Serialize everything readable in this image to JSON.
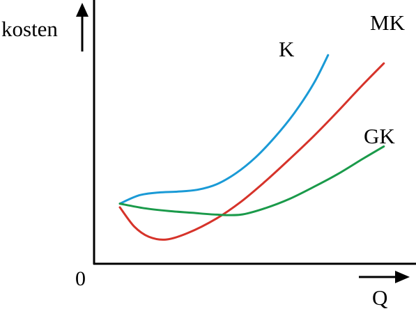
{
  "chart_data": {
    "type": "line",
    "title": "",
    "ylabel": "kosten",
    "xlabel": "Q",
    "origin_label": "0",
    "grid": false,
    "legend": "none",
    "series": [
      {
        "name": "K",
        "color": "#1a9ad6",
        "x": [
          0.0,
          0.4,
          0.8,
          1.2,
          1.6,
          2.0,
          2.4,
          2.8,
          3.2,
          3.6,
          4.0,
          4.3
        ],
        "y": [
          3.3,
          3.75,
          3.9,
          3.95,
          4.05,
          4.35,
          4.95,
          5.8,
          6.9,
          8.2,
          9.8,
          11.35
        ]
      },
      {
        "name": "MK",
        "color": "#d6332a",
        "x": [
          0.0,
          0.3,
          0.6,
          0.95,
          1.4,
          2.0,
          2.5,
          3.0,
          3.5,
          4.0,
          4.5,
          5.0,
          5.45
        ],
        "y": [
          3.1,
          2.05,
          1.5,
          1.35,
          1.7,
          2.5,
          3.4,
          4.5,
          5.7,
          6.95,
          8.3,
          9.7,
          10.9
        ]
      },
      {
        "name": "GK",
        "color": "#1a9a4a",
        "x": [
          0.0,
          0.5,
          1.0,
          1.5,
          2.0,
          2.5,
          3.0,
          3.5,
          4.0,
          4.5,
          5.0,
          5.45
        ],
        "y": [
          3.3,
          3.05,
          2.9,
          2.8,
          2.7,
          2.7,
          3.05,
          3.55,
          4.2,
          4.9,
          5.7,
          6.4
        ]
      }
    ]
  }
}
